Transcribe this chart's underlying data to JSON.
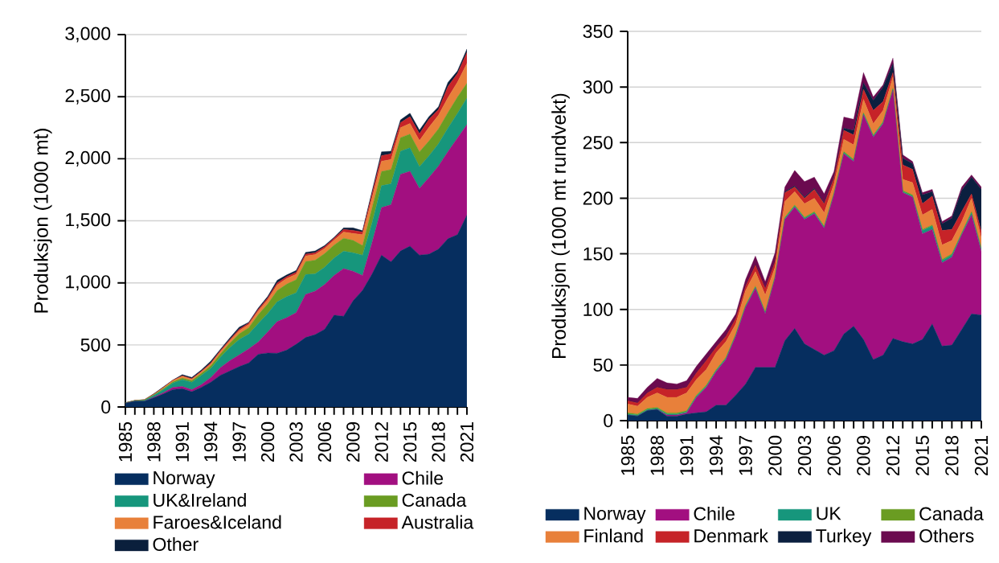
{
  "chart_data": [
    {
      "type": "area",
      "stacked": true,
      "ylabel": "Produksjon (1000 mt)",
      "grid": "y",
      "legend": "bottom",
      "x": [
        1985,
        1986,
        1987,
        1988,
        1989,
        1990,
        1991,
        1992,
        1993,
        1994,
        1995,
        1996,
        1997,
        1998,
        1999,
        2000,
        2001,
        2002,
        2003,
        2004,
        2005,
        2006,
        2007,
        2008,
        2009,
        2010,
        2011,
        2012,
        2013,
        2014,
        2015,
        2016,
        2017,
        2018,
        2019,
        2020,
        2021
      ],
      "xlim": [
        1985,
        2021
      ],
      "xticks": [
        1985,
        1988,
        1991,
        1994,
        1997,
        2000,
        2003,
        2006,
        2009,
        2012,
        2015,
        2018,
        2021
      ],
      "ylim": [
        0,
        3000
      ],
      "yticks": [
        0,
        500,
        {
          "value": 1000,
          "label": "1,000"
        },
        {
          "value": 1500,
          "label": "1,500"
        },
        {
          "value": 2000,
          "label": "2,000"
        },
        {
          "value": 2500,
          "label": "2,500"
        },
        {
          "value": 3000,
          "label": "3,000"
        }
      ],
      "series": [
        {
          "name": "Norway",
          "color": "#062e5f",
          "values": [
            30,
            45,
            45,
            75,
            105,
            140,
            147,
            123,
            158,
            200,
            255,
            290,
            326,
            355,
            425,
            435,
            433,
            458,
            505,
            560,
            583,
            626,
            740,
            731,
            856,
            940,
            1071,
            1224,
            1169,
            1257,
            1296,
            1224,
            1231,
            1272,
            1356,
            1388,
            1546
          ]
        },
        {
          "name": "Chile",
          "color": "#a20f80",
          "values": [
            0,
            0,
            1,
            4,
            10,
            18,
            19,
            17,
            22,
            37,
            61,
            83,
            94,
            114,
            98,
            169,
            255,
            262,
            255,
            347,
            350,
            360,
            320,
            384,
            237,
            120,
            252,
            383,
            460,
            618,
            603,
            537,
            617,
            669,
            701,
            778,
            729
          ]
        },
        {
          "name": "UK&Ireland",
          "color": "#16967c",
          "values": [
            3,
            5,
            8,
            15,
            25,
            35,
            55,
            60,
            75,
            75,
            85,
            105,
            125,
            120,
            150,
            150,
            160,
            170,
            160,
            160,
            140,
            140,
            140,
            140,
            150,
            164,
            160,
            176,
            170,
            185,
            190,
            175,
            175,
            180,
            190,
            200,
            213
          ]
        },
        {
          "name": "Canada",
          "color": "#6a9c22",
          "values": [
            0,
            1,
            2,
            4,
            7,
            10,
            12,
            12,
            15,
            20,
            25,
            35,
            45,
            50,
            70,
            75,
            90,
            100,
            105,
            105,
            110,
            110,
            105,
            105,
            100,
            77,
            120,
            114,
            115,
            110,
            110,
            120,
            120,
            120,
            125,
            130,
            120
          ]
        },
        {
          "name": "Faroes&Iceland",
          "color": "#e8803a",
          "values": [
            0,
            1,
            2,
            4,
            8,
            10,
            15,
            12,
            12,
            15,
            18,
            20,
            25,
            25,
            30,
            35,
            45,
            45,
            45,
            45,
            45,
            40,
            40,
            50,
            55,
            87,
            80,
            83,
            80,
            80,
            85,
            90,
            110,
            110,
            120,
            120,
            160
          ]
        },
        {
          "name": "Australia",
          "color": "#c62328",
          "values": [
            0,
            0,
            0,
            1,
            2,
            2,
            3,
            5,
            6,
            8,
            9,
            10,
            12,
            12,
            13,
            14,
            16,
            15,
            15,
            15,
            15,
            15,
            15,
            20,
            25,
            22,
            35,
            45,
            45,
            40,
            55,
            55,
            65,
            45,
            90,
            70,
            88
          ]
        },
        {
          "name": "Other",
          "color": "#0a1f3c",
          "values": [
            2,
            1,
            1,
            4,
            5,
            2,
            10,
            10,
            10,
            15,
            11,
            13,
            17,
            7,
            11,
            13,
            22,
            14,
            15,
            14,
            14,
            10,
            7,
            13,
            20,
            11,
            21,
            31,
            22,
            23,
            28,
            30,
            22,
            22,
            33,
            21,
            28
          ]
        }
      ]
    },
    {
      "type": "area",
      "stacked": true,
      "ylabel": "Produksjon (1000 mt rundvekt)",
      "grid": "y",
      "legend": "bottom",
      "x": [
        1985,
        1986,
        1987,
        1988,
        1989,
        1990,
        1991,
        1992,
        1993,
        1994,
        1995,
        1996,
        1997,
        1998,
        1999,
        2000,
        2001,
        2002,
        2003,
        2004,
        2005,
        2006,
        2007,
        2008,
        2009,
        2010,
        2011,
        2012,
        2013,
        2014,
        2015,
        2016,
        2017,
        2018,
        2019,
        2020,
        2021
      ],
      "xlim": [
        1985,
        2021
      ],
      "xticks": [
        1985,
        1988,
        1991,
        1994,
        1997,
        2000,
        2003,
        2006,
        2009,
        2012,
        2015,
        2018,
        2021
      ],
      "ylim": [
        0,
        350
      ],
      "yticks": [
        0,
        50,
        100,
        150,
        200,
        250,
        300,
        350
      ],
      "series": [
        {
          "name": "Norway",
          "color": "#062e5f",
          "values": [
            5,
            4,
            9,
            10,
            4,
            4,
            6,
            7,
            8,
            14,
            14,
            23,
            33,
            48,
            48,
            48,
            72,
            83,
            69,
            64,
            59,
            63,
            78,
            85,
            73,
            55,
            59,
            74,
            71,
            69,
            73,
            87,
            67,
            68,
            82,
            96,
            95
          ]
        },
        {
          "name": "Chile",
          "color": "#a20f80",
          "values": [
            0,
            0,
            0,
            0,
            1,
            1,
            1,
            14,
            22,
            30,
            41,
            53,
            69,
            71,
            48,
            80,
            109,
            109,
            112,
            122,
            114,
            140,
            162,
            148,
            202,
            200,
            208,
            223,
            134,
            132,
            95,
            85,
            75,
            79,
            85,
            89,
            57
          ]
        },
        {
          "name": "UK",
          "color": "#16967c",
          "values": [
            1,
            1,
            1,
            1,
            1,
            1,
            1,
            1,
            1,
            1,
            1,
            1,
            1,
            1,
            1,
            1,
            1,
            1,
            1,
            1,
            1,
            1,
            1,
            1,
            1,
            1,
            1,
            1,
            1,
            1,
            3,
            3,
            2,
            2,
            1,
            2,
            2
          ]
        },
        {
          "name": "Canada",
          "color": "#6a9c22",
          "values": [
            1,
            1,
            1,
            1,
            1,
            1,
            1,
            1,
            1,
            1,
            1,
            1,
            1,
            1,
            1,
            1,
            1,
            1,
            1,
            1,
            1,
            1,
            1,
            1,
            1,
            1,
            1,
            1,
            1,
            1,
            1,
            1,
            1,
            1,
            1,
            1,
            1
          ]
        },
        {
          "name": "Finland",
          "color": "#e8803a",
          "values": [
            8,
            7,
            10,
            13,
            14,
            14,
            16,
            14,
            14,
            15,
            14,
            9,
            13,
            13,
            15,
            8,
            14,
            12,
            12,
            12,
            12,
            8,
            11,
            13,
            12,
            10,
            10,
            10,
            10,
            11,
            13,
            14,
            13,
            12,
            10,
            12,
            9
          ]
        },
        {
          "name": "Denmark",
          "color": "#c62328",
          "values": [
            3,
            3,
            4,
            5,
            7,
            7,
            5,
            6,
            8,
            5,
            5,
            5,
            4,
            6,
            6,
            5,
            8,
            4,
            5,
            8,
            8,
            5,
            8,
            9,
            9,
            12,
            8,
            4,
            13,
            12,
            10,
            12,
            13,
            10,
            9,
            4,
            6
          ]
        },
        {
          "name": "Turkey",
          "color": "#0b1f3f",
          "values": [
            0,
            0,
            0,
            0,
            0,
            0,
            0,
            0,
            0,
            0,
            0,
            0,
            0,
            0,
            0,
            0,
            1,
            1,
            1,
            1,
            1,
            1,
            2,
            4,
            6,
            9,
            13,
            8,
            6,
            5,
            8,
            4,
            6,
            10,
            19,
            15,
            38
          ]
        },
        {
          "name": "Others",
          "color": "#6b0a4f",
          "values": [
            3,
            4,
            5,
            8,
            6,
            5,
            6,
            6,
            6,
            5,
            6,
            4,
            6,
            8,
            6,
            8,
            4,
            14,
            14,
            10,
            8,
            5,
            10,
            10,
            9,
            3,
            2,
            5,
            3,
            2,
            2,
            2,
            2,
            2,
            3,
            2,
            2
          ]
        }
      ]
    }
  ]
}
